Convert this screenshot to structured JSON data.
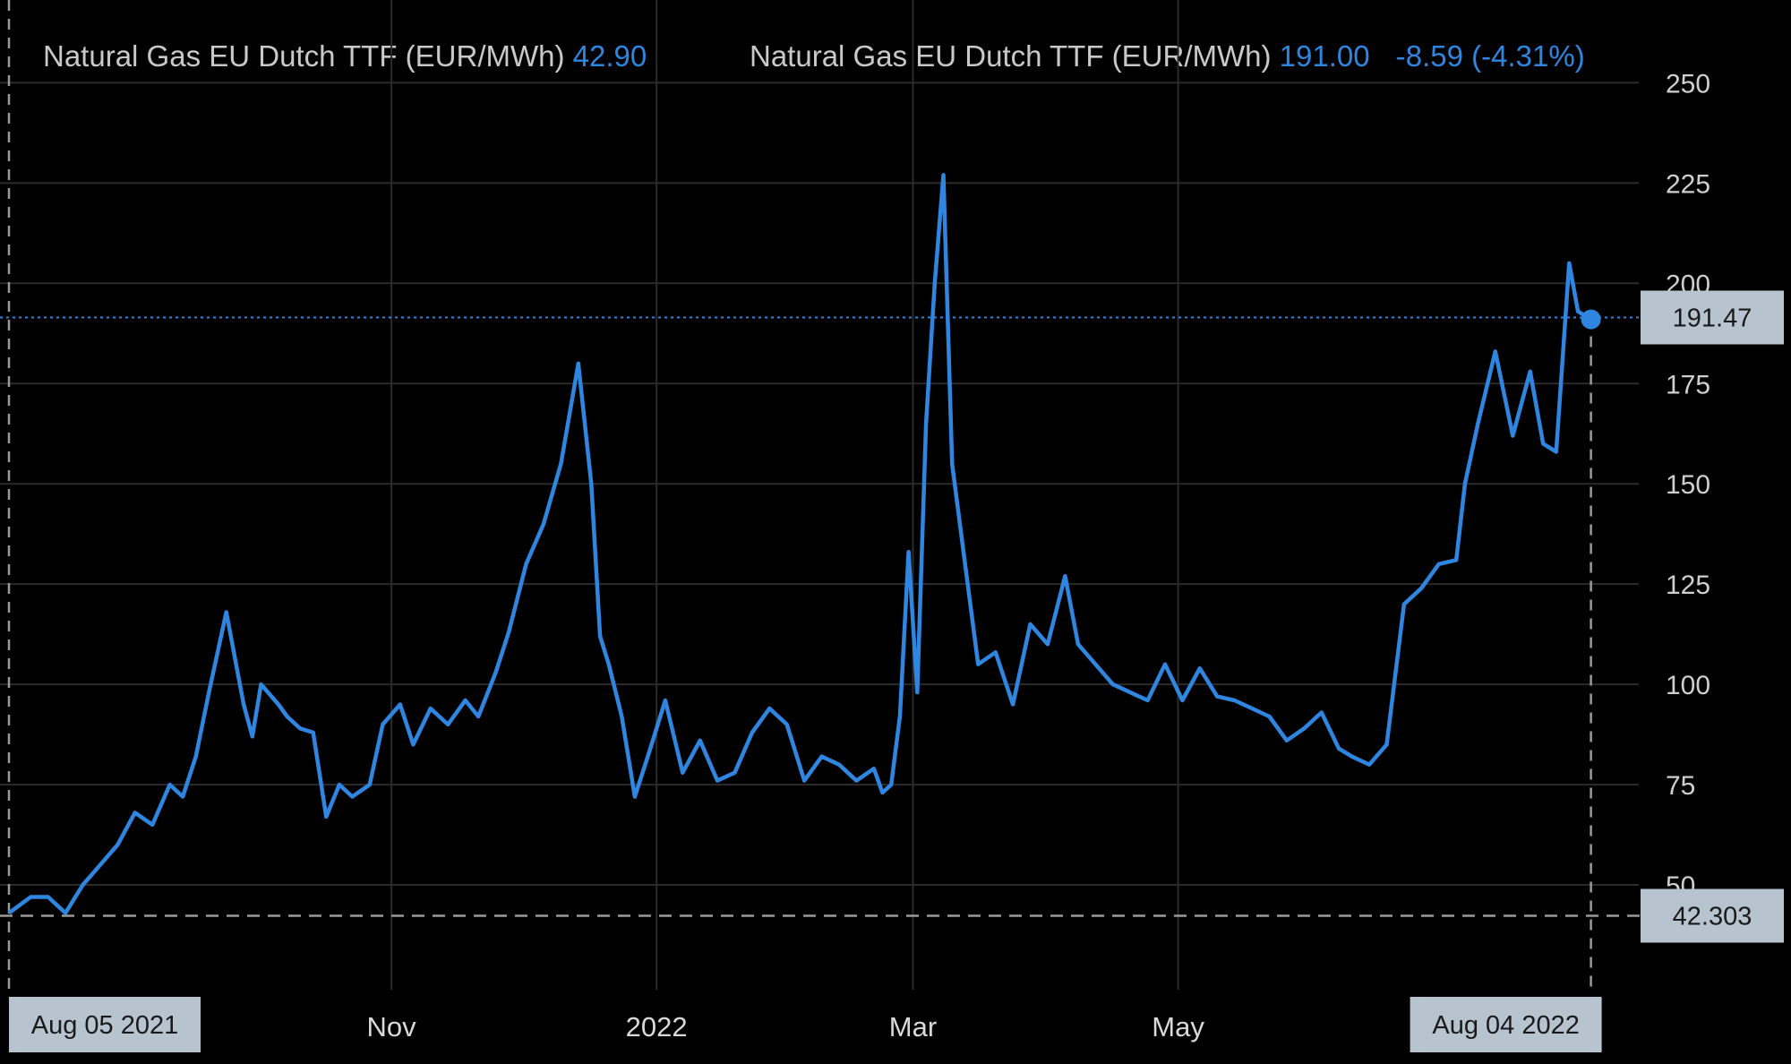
{
  "legend": {
    "left_label": "Natural Gas EU Dutch TTF (EUR/MWh)",
    "left_value": "42.90",
    "right_label": "Natural Gas EU Dutch TTF (EUR/MWh)",
    "right_value": "191.00",
    "right_change": "-8.59 (-4.31%)"
  },
  "chart_data": {
    "type": "line",
    "title": "",
    "xlabel": "",
    "ylabel": "",
    "ylim": [
      25,
      255
    ],
    "xlim": [
      "2021-08-05",
      "2022-08-15"
    ],
    "y_ticks": [
      50,
      75,
      100,
      125,
      150,
      175,
      200,
      225,
      250
    ],
    "x_ticks": [
      {
        "date": "2021-11-01",
        "label": "Nov"
      },
      {
        "date": "2022-01-01",
        "label": "2022"
      },
      {
        "date": "2022-03-01",
        "label": "Mar"
      },
      {
        "date": "2022-05-01",
        "label": "May"
      }
    ],
    "x_start_label": "Aug 05 2021",
    "x_end_label": "Aug 04 2022",
    "last_price_label": "191.47",
    "last_price": 191.47,
    "start_price_label": "42.303",
    "start_price": 42.303,
    "line_color": "#2f86e0",
    "grid": true,
    "series": [
      {
        "x": [
          "2021-08-05",
          "2021-08-10",
          "2021-08-14",
          "2021-08-18",
          "2021-08-22",
          "2021-08-26",
          "2021-08-30",
          "2021-09-03",
          "2021-09-07",
          "2021-09-11",
          "2021-09-14",
          "2021-09-17",
          "2021-09-20",
          "2021-09-24",
          "2021-09-28",
          "2021-09-30",
          "2021-10-02",
          "2021-10-06",
          "2021-10-08",
          "2021-10-11",
          "2021-10-14",
          "2021-10-17",
          "2021-10-20",
          "2021-10-23",
          "2021-10-27",
          "2021-10-30",
          "2021-11-03",
          "2021-11-06",
          "2021-11-10",
          "2021-11-14",
          "2021-11-18",
          "2021-11-21",
          "2021-11-25",
          "2021-11-28",
          "2021-12-02",
          "2021-12-06",
          "2021-12-10",
          "2021-12-14",
          "2021-12-17",
          "2021-12-19",
          "2021-12-21",
          "2021-12-24",
          "2021-12-27",
          "2021-12-30",
          "2022-01-03",
          "2022-01-07",
          "2022-01-11",
          "2022-01-15",
          "2022-01-19",
          "2022-01-23",
          "2022-01-27",
          "2022-01-31",
          "2022-02-04",
          "2022-02-08",
          "2022-02-12",
          "2022-02-16",
          "2022-02-20",
          "2022-02-22",
          "2022-02-24",
          "2022-02-26",
          "2022-02-28",
          "2022-03-02",
          "2022-03-04",
          "2022-03-06",
          "2022-03-08",
          "2022-03-10",
          "2022-03-13",
          "2022-03-16",
          "2022-03-20",
          "2022-03-24",
          "2022-03-28",
          "2022-04-01",
          "2022-04-05",
          "2022-04-08",
          "2022-04-12",
          "2022-04-16",
          "2022-04-20",
          "2022-04-24",
          "2022-04-28",
          "2022-05-02",
          "2022-05-06",
          "2022-05-10",
          "2022-05-14",
          "2022-05-18",
          "2022-05-22",
          "2022-05-26",
          "2022-05-30",
          "2022-06-03",
          "2022-06-07",
          "2022-06-10",
          "2022-06-14",
          "2022-06-18",
          "2022-06-22",
          "2022-06-26",
          "2022-06-30",
          "2022-07-04",
          "2022-07-06",
          "2022-07-09",
          "2022-07-13",
          "2022-07-17",
          "2022-07-21",
          "2022-07-24",
          "2022-07-27",
          "2022-07-30",
          "2022-08-01",
          "2022-08-04"
        ],
        "y": [
          43,
          47,
          47,
          43,
          50,
          55,
          60,
          68,
          65,
          75,
          72,
          82,
          98,
          118,
          95,
          87,
          100,
          95,
          92,
          89,
          88,
          67,
          75,
          72,
          75,
          90,
          95,
          85,
          94,
          90,
          96,
          92,
          103,
          113,
          130,
          140,
          155,
          180,
          150,
          112,
          105,
          92,
          72,
          82,
          96,
          78,
          86,
          76,
          78,
          88,
          94,
          90,
          76,
          82,
          80,
          76,
          79,
          73,
          75,
          92,
          133,
          98,
          165,
          200,
          227,
          155,
          130,
          105,
          108,
          95,
          115,
          110,
          127,
          110,
          105,
          100,
          98,
          96,
          105,
          96,
          104,
          97,
          96,
          94,
          92,
          86,
          89,
          93,
          84,
          82,
          80,
          85,
          120,
          124,
          130,
          131,
          150,
          165,
          183,
          162,
          178,
          160,
          158,
          205,
          193,
          191
        ]
      }
    ]
  }
}
